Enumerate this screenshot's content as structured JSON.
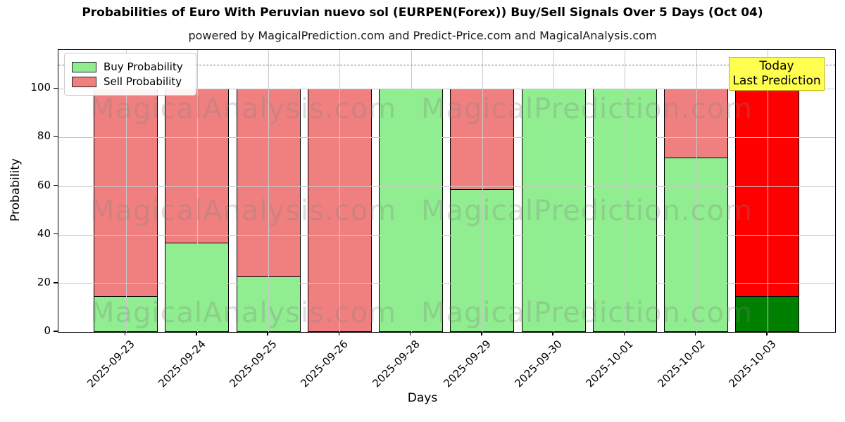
{
  "title": "Probabilities of Euro With Peruvian nuevo sol (EURPEN(Forex)) Buy/Sell Signals Over 5 Days (Oct 04)",
  "subtitle": "powered by MagicalPrediction.com and Predict-Price.com and MagicalAnalysis.com",
  "watermarks": {
    "left": "MagicalAnalysis.com",
    "right": "MagicalPrediction.com"
  },
  "annotation": {
    "line1": "Today",
    "line2": "Last Prediction",
    "bg": "#ffff4f",
    "border": "#c9b900"
  },
  "legend": {
    "items": [
      {
        "label": "Buy Probability",
        "color": "#90ee90"
      },
      {
        "label": "Sell Probability",
        "color": "#f08080"
      }
    ]
  },
  "axes": {
    "ylabel": "Probability",
    "xlabel": "Days"
  },
  "chart_data": {
    "type": "bar",
    "stacked": true,
    "title": "Probabilities of Euro With Peruvian nuevo sol (EURPEN(Forex)) Buy/Sell Signals Over 5 Days (Oct 04)",
    "subtitle": "powered by MagicalPrediction.com and Predict-Price.com and MagicalAnalysis.com",
    "xlabel": "Days",
    "ylabel": "Probability",
    "categories": [
      "2025-09-23",
      "2025-09-24",
      "2025-09-25",
      "2025-09-26",
      "2025-09-28",
      "2025-09-29",
      "2025-09-30",
      "2025-10-01",
      "2025-10-02",
      "2025-10-03"
    ],
    "series": [
      {
        "name": "Buy Probability",
        "color": "#90ee90",
        "today_color": "#008000",
        "values": [
          15,
          37,
          23,
          0,
          100,
          59,
          100,
          100,
          72,
          15
        ]
      },
      {
        "name": "Sell Probability",
        "color": "#f08080",
        "today_color": "#ff0000",
        "values": [
          85,
          63,
          77,
          100,
          0,
          41,
          0,
          0,
          28,
          85
        ]
      }
    ],
    "yticks": [
      0,
      20,
      40,
      60,
      80,
      100
    ],
    "ylim": [
      0,
      116
    ],
    "dashed_line_y": 110,
    "grid": true,
    "legend_position": "upper left",
    "today_category": "2025-10-03"
  }
}
